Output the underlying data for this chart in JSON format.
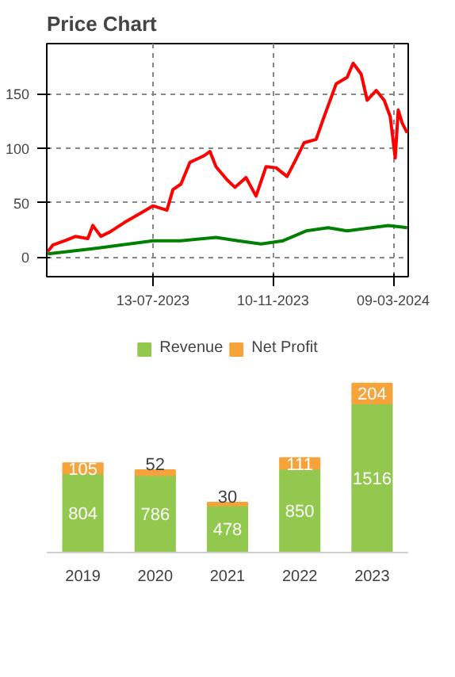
{
  "chart_data": [
    {
      "type": "line",
      "title": "Price Chart",
      "xlim": [
        "2023-03-29",
        "2024-03-24"
      ],
      "ylim": [
        -18,
        196
      ],
      "xticks": [
        {
          "value": "2023-07-13",
          "label": "13-07-2023"
        },
        {
          "value": "2023-11-10",
          "label": "10-11-2023"
        },
        {
          "value": "2024-03-09",
          "label": "09-03-2024"
        }
      ],
      "yticks": [
        0,
        50,
        100,
        150
      ],
      "grid": true,
      "legend": false,
      "series": [
        {
          "color": "#ff0000",
          "x": [
            "2023-03-30",
            "2023-04-04",
            "2023-04-16",
            "2023-04-27",
            "2023-05-09",
            "2023-05-14",
            "2023-05-22",
            "2023-05-31",
            "2023-06-15",
            "2023-07-02",
            "2023-07-13",
            "2023-07-27",
            "2023-08-02",
            "2023-08-10",
            "2023-08-19",
            "2023-09-02",
            "2023-09-08",
            "2023-09-14",
            "2023-09-25",
            "2023-10-03",
            "2023-10-14",
            "2023-10-24",
            "2023-11-03",
            "2023-11-13",
            "2023-11-24",
            "2023-12-03",
            "2023-12-11",
            "2023-12-23",
            "2023-12-31",
            "2024-01-12",
            "2024-01-23",
            "2024-01-29",
            "2024-02-06",
            "2024-02-12",
            "2024-02-21",
            "2024-02-29",
            "2024-03-06",
            "2024-03-11",
            "2024-03-14",
            "2024-03-18",
            "2024-03-23"
          ],
          "values": [
            5,
            11,
            15,
            19,
            17,
            29,
            19,
            23,
            32,
            41,
            47,
            43,
            62,
            67,
            87,
            93,
            97,
            83,
            71,
            64,
            73,
            56,
            83,
            82,
            74,
            90,
            105,
            108,
            129,
            159,
            165,
            178,
            168,
            144,
            153,
            144,
            129,
            91,
            135,
            123,
            114
          ]
        },
        {
          "color": "#008000",
          "x": [
            "2023-03-30",
            "2023-05-17",
            "2023-07-13",
            "2023-08-10",
            "2023-09-14",
            "2023-10-06",
            "2023-10-29",
            "2023-11-20",
            "2023-12-13",
            "2024-01-04",
            "2024-01-23",
            "2024-03-04",
            "2024-03-23"
          ],
          "values": [
            3,
            8,
            15,
            15,
            18,
            15,
            12,
            15,
            24,
            27,
            24,
            29,
            27
          ]
        }
      ]
    },
    {
      "type": "bar",
      "stacked": true,
      "data_labels": true,
      "legend": "top",
      "categories": [
        "2019",
        "2020",
        "2021",
        "2022",
        "2023"
      ],
      "series": [
        {
          "name": "Revenue",
          "color": "#92c84e",
          "values": [
            804,
            786,
            478,
            850,
            1516
          ]
        },
        {
          "name": "Net Profit",
          "color": "#f5a33a",
          "values": [
            105,
            52,
            30,
            111,
            204
          ]
        }
      ]
    }
  ]
}
